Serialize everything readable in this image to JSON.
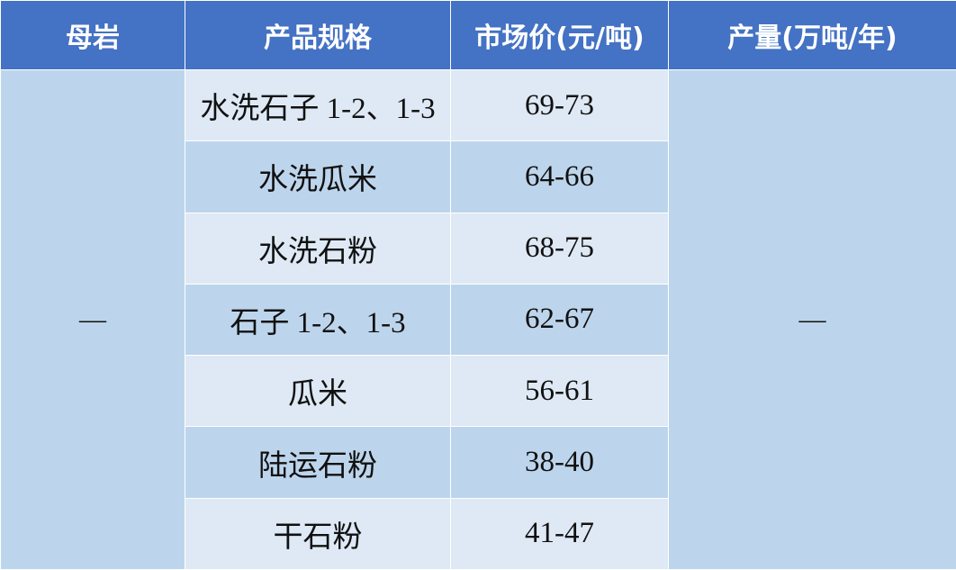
{
  "headers": [
    "母岩",
    "产品规格",
    "市场价(元/吨)",
    "产量(万吨/年)"
  ],
  "merged": {
    "rock": "—",
    "output": "—"
  },
  "rows": [
    {
      "spec": "水洗石子 1-2、1-3",
      "price": "69-73"
    },
    {
      "spec": "水洗瓜米",
      "price": "64-66"
    },
    {
      "spec": "水洗石粉",
      "price": "68-75"
    },
    {
      "spec": "石子 1-2、1-3",
      "price": "62-67"
    },
    {
      "spec": "瓜米",
      "price": "56-61"
    },
    {
      "spec": "陆运石粉",
      "price": "38-40"
    },
    {
      "spec": "干石粉",
      "price": "41-47"
    }
  ],
  "colors": {
    "header": "#4472C4",
    "row_light": "#DEE9F5",
    "row_dark": "#BDD5EC"
  }
}
